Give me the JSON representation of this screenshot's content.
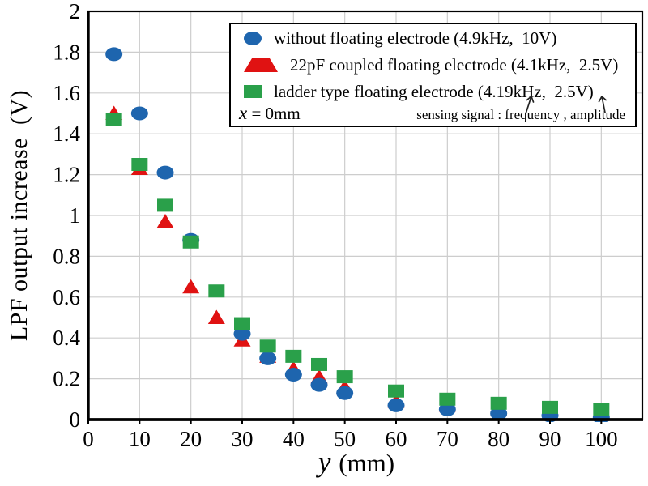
{
  "figure": {
    "background": "#ffffff",
    "border_color": "#000000",
    "grid_color": "#cdcdcd",
    "text_color": "#000000"
  },
  "chart_data": {
    "type": "scatter",
    "title": "",
    "xlabel": {
      "var": "y",
      "unit": " (mm)"
    },
    "ylabel": "LPF output increase  (V)",
    "xlim": [
      0,
      108
    ],
    "ylim": [
      0,
      2
    ],
    "grid": true,
    "legend_position": "top-right",
    "xticks": [
      0,
      10,
      20,
      30,
      40,
      50,
      60,
      70,
      80,
      90,
      100
    ],
    "yticks": [
      {
        "v": 0,
        "label": "0"
      },
      {
        "v": 0.2,
        "label": "0.2"
      },
      {
        "v": 0.4,
        "label": "0.4"
      },
      {
        "v": 0.6,
        "label": "0.6"
      },
      {
        "v": 0.8,
        "label": "0.8"
      },
      {
        "v": 1,
        "label": "1"
      },
      {
        "v": 1.2,
        "label": "1.2"
      },
      {
        "v": 1.4,
        "label": "1.4"
      },
      {
        "v": 1.6,
        "label": "1.6"
      },
      {
        "v": 1.8,
        "label": "1.8"
      },
      {
        "v": 2,
        "label": "2"
      }
    ],
    "draw_order": [
      1,
      0,
      2
    ],
    "series": [
      {
        "name": "without floating electrode (4.9kHz,  10V)",
        "marker": "circle",
        "color": "#1e65ae",
        "points": [
          [
            5,
            1.79
          ],
          [
            10,
            1.5
          ],
          [
            15,
            1.21
          ],
          [
            20,
            0.88
          ],
          [
            30,
            0.42
          ],
          [
            35,
            0.3
          ],
          [
            40,
            0.22
          ],
          [
            45,
            0.17
          ],
          [
            50,
            0.13
          ],
          [
            60,
            0.07
          ],
          [
            70,
            0.05
          ],
          [
            80,
            0.03
          ],
          [
            90,
            0.02
          ],
          [
            100,
            0.01
          ]
        ]
      },
      {
        "name": "22pF coupled floating electrode (4.1kHz,  2.5V)",
        "marker": "triangle",
        "color": "#e01212",
        "points": [
          [
            5,
            1.5
          ],
          [
            10,
            1.23
          ],
          [
            15,
            0.97
          ],
          [
            20,
            0.65
          ],
          [
            25,
            0.5
          ],
          [
            30,
            0.39
          ],
          [
            35,
            0.31
          ],
          [
            40,
            0.25
          ],
          [
            45,
            0.21
          ],
          [
            50,
            0.16
          ],
          [
            60,
            0.09
          ],
          [
            70,
            0.07
          ],
          [
            80,
            0.05
          ],
          [
            90,
            0.03
          ],
          [
            100,
            0.03
          ]
        ]
      },
      {
        "name": "ladder type floating electrode (4.19kHz,  2.5V)",
        "marker": "square",
        "color": "#2aa04a",
        "points": [
          [
            5,
            1.47
          ],
          [
            10,
            1.25
          ],
          [
            15,
            1.05
          ],
          [
            20,
            0.87
          ],
          [
            25,
            0.63
          ],
          [
            30,
            0.47
          ],
          [
            35,
            0.36
          ],
          [
            40,
            0.31
          ],
          [
            45,
            0.27
          ],
          [
            50,
            0.21
          ],
          [
            60,
            0.14
          ],
          [
            70,
            0.1
          ],
          [
            80,
            0.08
          ],
          [
            90,
            0.06
          ],
          [
            100,
            0.05
          ]
        ]
      }
    ],
    "legend_note": {
      "var": "x",
      "rest": " = 0mm"
    },
    "sensing_note": "sensing signal : frequency , amplitude"
  }
}
